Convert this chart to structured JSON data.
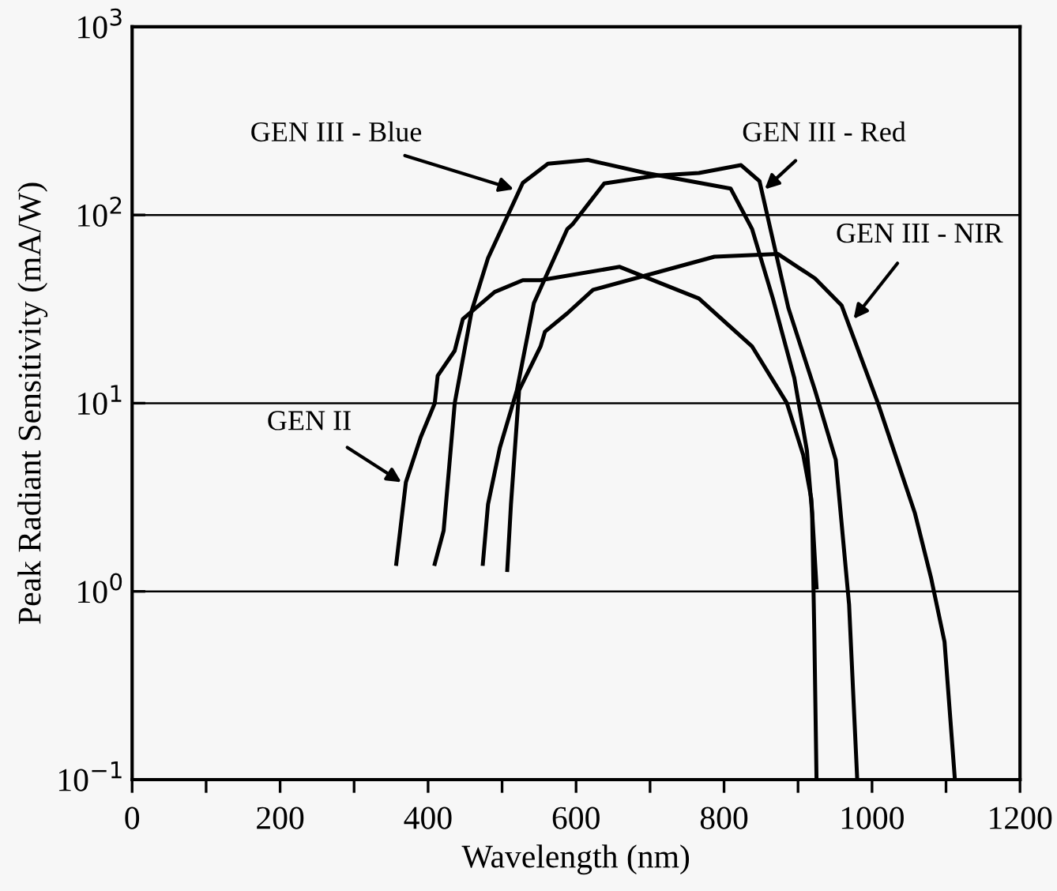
{
  "chart_data": {
    "type": "line",
    "xlabel": "Wavelength (nm)",
    "ylabel": "Peak Radiant Sensitivity (mA/W)",
    "log": "y",
    "grid": "y",
    "marker": "none",
    "line_style": "solid",
    "xlim": [
      0,
      1200
    ],
    "ylim": [
      0.1,
      1000
    ],
    "xticks": [
      0,
      {
        "value": 100,
        "label": null
      },
      200,
      {
        "value": 300,
        "label": null
      },
      400,
      {
        "value": 500,
        "label": null
      },
      600,
      {
        "value": 700,
        "label": null
      },
      800,
      {
        "value": 900,
        "label": null
      },
      1000,
      {
        "value": 1100,
        "label": null
      },
      1200
    ],
    "yticks": [
      {
        "value": 0.1,
        "label": "10$^{−1}$"
      },
      {
        "value": 1,
        "label": "10$^{0}$"
      },
      {
        "value": 10,
        "label": "10$^{1}$"
      },
      {
        "value": 100,
        "label": "10$^{2}$"
      },
      {
        "value": 1000,
        "label": "10$^{3}$"
      }
    ],
    "series": [
      {
        "color": "#000000",
        "x": [
          357,
          370,
          390,
          409,
          413,
          436,
          447,
          490,
          528,
          552,
          659,
          766,
          838,
          885,
          907,
          918,
          925
        ],
        "values": [
          1.4,
          3.8,
          6.6,
          10,
          14,
          19,
          28,
          39,
          45,
          45,
          53,
          36,
          20,
          10,
          5.3,
          3.1,
          1.05
        ]
      },
      {
        "color": "#000000",
        "x": [
          409,
          421,
          436,
          459,
          481,
          528,
          562,
          616,
          694,
          809,
          838,
          866,
          895,
          912,
          919,
          922,
          925
        ],
        "values": [
          1.4,
          2.1,
          10,
          31,
          59,
          148,
          187,
          196,
          167,
          138,
          84,
          36,
          13.6,
          5.6,
          2.6,
          0.6,
          0.1
        ]
      },
      {
        "color": "#000000",
        "x": [
          474,
          481,
          497,
          520,
          543,
          588,
          595,
          638,
          709,
          766,
          823,
          848,
          887,
          923,
          951,
          969,
          980
        ],
        "values": [
          1.4,
          2.9,
          5.8,
          11.7,
          34,
          84,
          89,
          147,
          162,
          167,
          184,
          151,
          32,
          11.7,
          5,
          0.85,
          0.1
        ]
      },
      {
        "color": "#000000",
        "x": [
          507,
          512,
          523,
          552,
          558,
          588,
          623,
          787,
          873,
          923,
          959,
          1008,
          1058,
          1080,
          1098,
          1112
        ],
        "values": [
          1.3,
          2.9,
          11.7,
          20,
          24,
          30,
          40,
          60,
          62,
          46,
          33,
          10,
          2.6,
          1.17,
          0.54,
          0.1
        ]
      }
    ],
    "annotations": [
      {
        "text": "GEN II",
        "x": 364,
        "y": 3.8
      },
      {
        "text": "GEN III - Blue",
        "x": 516,
        "y": 137
      },
      {
        "text": "GEN III - Red",
        "x": 855,
        "y": 137
      },
      {
        "text": "GEN III - NIR",
        "x": 975,
        "y": 28
      }
    ]
  }
}
